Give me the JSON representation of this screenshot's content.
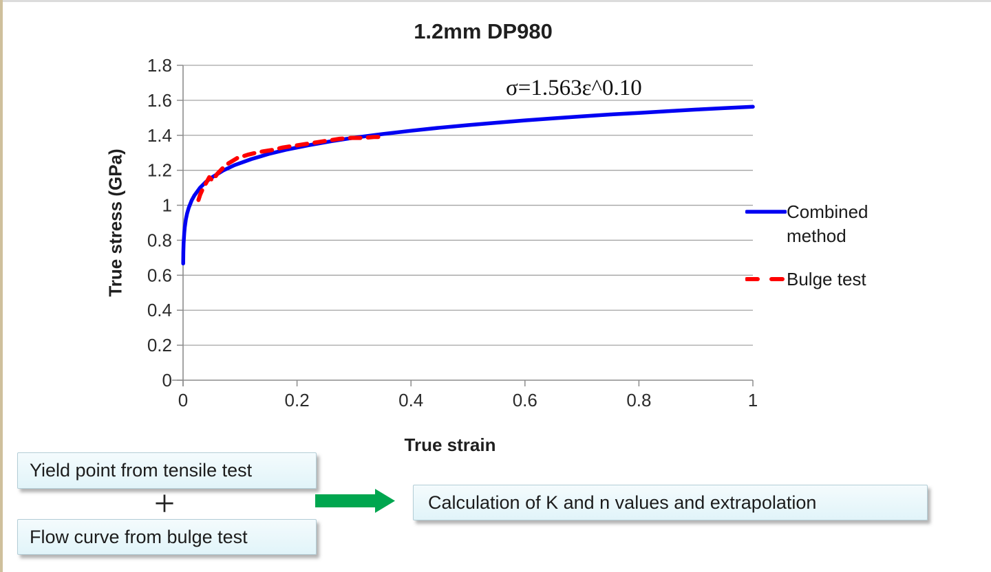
{
  "slide": {
    "title": "1.2mm DP980"
  },
  "colors": {
    "combined_blue": "#0202f2",
    "bulge_red": "#fe0000",
    "arrow_green": "#00a64f",
    "box_fill": "#e7f6fa",
    "grid_gray": "#a3a3a3",
    "axis_gray": "#8c8c8c"
  },
  "chart_data": {
    "type": "line",
    "title": "1.2mm DP980",
    "xlabel": "True strain",
    "ylabel": "True stress (GPa)",
    "annotation": "σ=1.563ε^0.10",
    "power_law": {
      "K_GPa": 1.563,
      "n": 0.1
    },
    "xlim": [
      0,
      1
    ],
    "ylim": [
      0,
      1.8
    ],
    "x_ticks": [
      "0",
      "0.2",
      "0.4",
      "0.6",
      "0.8",
      "1"
    ],
    "y_ticks": [
      "0",
      "0.2",
      "0.4",
      "0.6",
      "0.8",
      "1",
      "1.2",
      "1.4",
      "1.6",
      "1.8"
    ],
    "grid": "horizontal",
    "legend_position": "right",
    "series": [
      {
        "name": "Combined method",
        "color": "#0202f2",
        "style": "solid",
        "width": 5.5,
        "points": [
          [
            0.0002,
            0.667
          ],
          [
            0.0005,
            0.731
          ],
          [
            0.001,
            0.783
          ],
          [
            0.002,
            0.84
          ],
          [
            0.003,
            0.875
          ],
          [
            0.005,
            0.92
          ],
          [
            0.007,
            0.952
          ],
          [
            0.01,
            0.986
          ],
          [
            0.015,
            1.027
          ],
          [
            0.02,
            1.057
          ],
          [
            0.03,
            1.101
          ],
          [
            0.04,
            1.133
          ],
          [
            0.05,
            1.158
          ],
          [
            0.07,
            1.198
          ],
          [
            0.09,
            1.229
          ],
          [
            0.12,
            1.264
          ],
          [
            0.15,
            1.293
          ],
          [
            0.18,
            1.317
          ],
          [
            0.22,
            1.343
          ],
          [
            0.26,
            1.366
          ],
          [
            0.3,
            1.386
          ],
          [
            0.35,
            1.407
          ],
          [
            0.4,
            1.426
          ],
          [
            0.45,
            1.443
          ],
          [
            0.5,
            1.458
          ],
          [
            0.55,
            1.472
          ],
          [
            0.6,
            1.485
          ],
          [
            0.65,
            1.497
          ],
          [
            0.7,
            1.508
          ],
          [
            0.75,
            1.519
          ],
          [
            0.8,
            1.528
          ],
          [
            0.85,
            1.538
          ],
          [
            0.9,
            1.547
          ],
          [
            0.95,
            1.555
          ],
          [
            1.0,
            1.563
          ]
        ]
      },
      {
        "name": "Bulge test",
        "color": "#fe0000",
        "style": "dashed",
        "width": 6,
        "points": [
          [
            0.027,
            1.03
          ],
          [
            0.03,
            1.06
          ],
          [
            0.034,
            1.09
          ],
          [
            0.046,
            1.16
          ],
          [
            0.052,
            1.14
          ],
          [
            0.06,
            1.18
          ],
          [
            0.075,
            1.23
          ],
          [
            0.095,
            1.27
          ],
          [
            0.115,
            1.29
          ],
          [
            0.135,
            1.305
          ],
          [
            0.155,
            1.315
          ],
          [
            0.175,
            1.33
          ],
          [
            0.195,
            1.34
          ],
          [
            0.215,
            1.35
          ],
          [
            0.235,
            1.36
          ],
          [
            0.255,
            1.37
          ],
          [
            0.275,
            1.38
          ],
          [
            0.295,
            1.385
          ],
          [
            0.315,
            1.385
          ],
          [
            0.335,
            1.39
          ],
          [
            0.348,
            1.39
          ]
        ]
      }
    ]
  },
  "flow": {
    "box1": "Yield point from tensile test",
    "plus": "+",
    "box2": "Flow curve from bulge test",
    "box3": "Calculation of K and n values and extrapolation"
  }
}
